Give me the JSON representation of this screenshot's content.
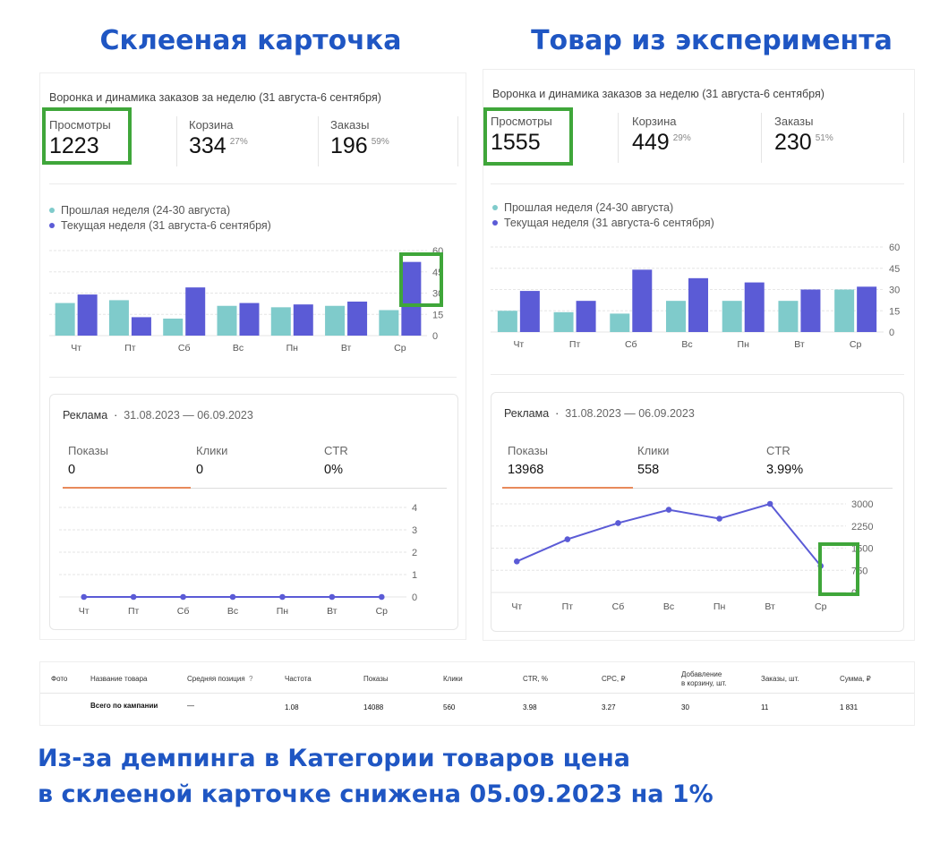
{
  "headings": {
    "left": "Склееная карточка",
    "right": "Товар из эксперимента"
  },
  "colors": {
    "prev_week": "#7fcbcb",
    "cur_week": "#5b5bd6",
    "heading": "#1f56c3",
    "highlight": "#3fa63a",
    "ads_line": "#5b5bd6",
    "tab_active": "#e88a5b"
  },
  "panels": {
    "left": {
      "funnel_title": "Воронка и динамика заказов за неделю (31 августа-6 сентября)",
      "metrics": [
        {
          "label": "Просмотры",
          "value": "1223",
          "pct": ""
        },
        {
          "label": "Корзина",
          "value": "334",
          "pct": "27%"
        },
        {
          "label": "Заказы",
          "value": "196",
          "pct": "59%"
        }
      ],
      "legend": [
        {
          "label": "Прошлая неделя (24-30 августа)",
          "color": "#7fcbcb"
        },
        {
          "label": "Текущая неделя (31 августа-6 сентября)",
          "color": "#5b5bd6"
        }
      ],
      "ads": {
        "title": "Реклама",
        "separator": "·",
        "period": "31.08.2023 — 06.09.2023",
        "metrics": [
          {
            "label": "Показы",
            "value": "0"
          },
          {
            "label": "Клики",
            "value": "0"
          },
          {
            "label": "CTR",
            "value": "0%"
          }
        ]
      }
    },
    "right": {
      "funnel_title": "Воронка и динамика заказов за неделю (31 августа-6 сентября)",
      "metrics": [
        {
          "label": "Просмотры",
          "value": "1555",
          "pct": ""
        },
        {
          "label": "Корзина",
          "value": "449",
          "pct": "29%"
        },
        {
          "label": "Заказы",
          "value": "230",
          "pct": "51%"
        }
      ],
      "legend": [
        {
          "label": "Прошлая неделя (24-30 августа)",
          "color": "#7fcbcb"
        },
        {
          "label": "Текущая неделя (31 августа-6 сентября)",
          "color": "#5b5bd6"
        }
      ],
      "ads": {
        "title": "Реклама",
        "separator": "·",
        "period": "31.08.2023 — 06.09.2023",
        "metrics": [
          {
            "label": "Показы",
            "value": "13968"
          },
          {
            "label": "Клики",
            "value": "558"
          },
          {
            "label": "CTR",
            "value": "3.99%"
          }
        ]
      }
    }
  },
  "chart_data": [
    {
      "id": "left-orders",
      "type": "bar",
      "categories": [
        "Чт",
        "Пт",
        "Сб",
        "Вс",
        "Пн",
        "Вт",
        "Ср"
      ],
      "series": [
        {
          "name": "Прошлая неделя (24-30 августа)",
          "values": [
            23,
            25,
            12,
            21,
            20,
            21,
            18
          ]
        },
        {
          "name": "Текущая неделя (31 августа-6 сентября)",
          "values": [
            29,
            13,
            34,
            23,
            22,
            24,
            52
          ]
        }
      ],
      "yticks": [
        "60",
        "45",
        "30",
        "15",
        "0"
      ],
      "ylim": [
        0,
        60
      ],
      "yaxis_side": "right",
      "grid": true
    },
    {
      "id": "right-orders",
      "type": "bar",
      "categories": [
        "Чт",
        "Пт",
        "Сб",
        "Вс",
        "Пн",
        "Вт",
        "Ср"
      ],
      "series": [
        {
          "name": "Прошлая неделя (24-30 августа)",
          "values": [
            15,
            14,
            13,
            22,
            22,
            22,
            30
          ]
        },
        {
          "name": "Текущая неделя (31 августа-6 сентября)",
          "values": [
            29,
            22,
            44,
            38,
            35,
            30,
            32
          ]
        }
      ],
      "yticks": [
        "60",
        "45",
        "30",
        "15",
        "0"
      ],
      "ylim": [
        0,
        60
      ],
      "yaxis_side": "right",
      "grid": true
    },
    {
      "id": "left-ads",
      "type": "line",
      "categories": [
        "Чт",
        "Пт",
        "Сб",
        "Вс",
        "Пн",
        "Вт",
        "Ср"
      ],
      "series": [
        {
          "values": [
            0,
            0,
            0,
            0,
            0,
            0,
            0
          ]
        }
      ],
      "yticks": [
        "4",
        "3",
        "2",
        "1",
        "0"
      ],
      "ylim": [
        0,
        4
      ],
      "yaxis_side": "right",
      "grid": true
    },
    {
      "id": "right-ads",
      "type": "line",
      "categories": [
        "Чт",
        "Пт",
        "Сб",
        "Вс",
        "Пн",
        "Вт",
        "Ср"
      ],
      "series": [
        {
          "values": [
            1050,
            1800,
            2350,
            2800,
            2500,
            3000,
            900
          ]
        }
      ],
      "yticks": [
        "3000",
        "2250",
        "1500",
        "750",
        "0"
      ],
      "ylim": [
        0,
        3000
      ],
      "yaxis_side": "right",
      "grid": true
    }
  ],
  "table": {
    "headers": [
      "Фото",
      "Название товара",
      "Средняя позиция",
      "?",
      "Частота",
      "Показы",
      "Клики",
      "CTR, %",
      "CPC, ₽",
      "Добавление",
      "в корзину, шт.",
      "Заказы, шт.",
      "Сумма, ₽"
    ],
    "row": [
      "Всего по кампании",
      "—",
      "1.08",
      "14088",
      "560",
      "3.98",
      "3.27",
      "30",
      "11",
      "1 831"
    ]
  },
  "caption": {
    "line1": "Из-за демпинга в Категории товаров цена",
    "line2": "в склееной карточке снижена 05.09.2023 на 1%"
  }
}
